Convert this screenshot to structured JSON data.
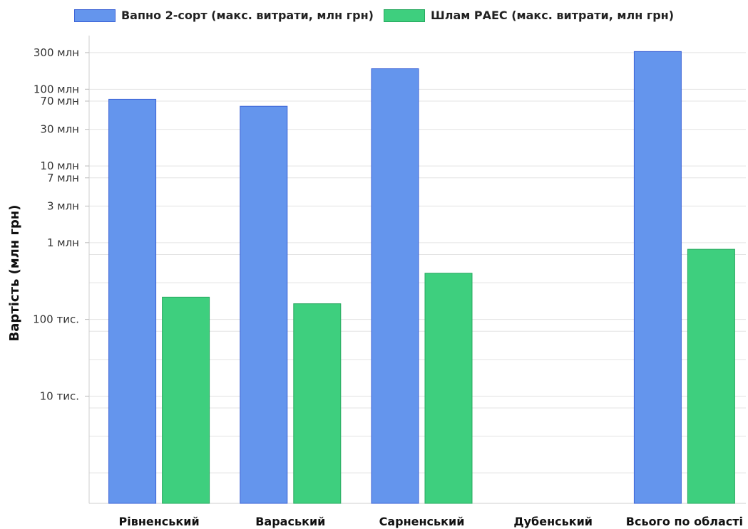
{
  "chart_data": {
    "type": "bar",
    "ylabel": "Вартість (млн грн)",
    "yscale": "log",
    "ylim": [
      400,
      500000000
    ],
    "legend_position": "top-center",
    "grid": true,
    "categories": [
      "Рівненський",
      "Вараський",
      "Сарненський",
      "Дубенський",
      "Всього по області"
    ],
    "series": [
      {
        "name": "Вапно 2-сорт (макс. витрати, млн грн)",
        "color": "#6495ED",
        "border": "#3b62d6",
        "values": [
          74000000,
          60000000,
          185000000,
          null,
          310000000
        ]
      },
      {
        "name": "Шлам РАЕС (макс. витрати, млн грн)",
        "color": "#3ECF7E",
        "border": "#27a85f",
        "values": [
          195000,
          160000,
          400000,
          null,
          820000
        ]
      }
    ],
    "ytick_labels": [
      {
        "value": 300000000,
        "label": "300 млн"
      },
      {
        "value": 100000000,
        "label": "100 млн"
      },
      {
        "value": 70000000,
        "label": "70 млн"
      },
      {
        "value": 30000000,
        "label": "30 млн"
      },
      {
        "value": 10000000,
        "label": "10 млн"
      },
      {
        "value": 7000000,
        "label": "7 млн"
      },
      {
        "value": 3000000,
        "label": "3 млн"
      },
      {
        "value": 1000000,
        "label": "1 млн"
      },
      {
        "value": 100000,
        "label": "100 тис."
      },
      {
        "value": 10000,
        "label": "10 тис."
      }
    ],
    "gridlines": [
      300000000,
      100000000,
      70000000,
      30000000,
      10000000,
      7000000,
      3000000,
      1000000,
      700000,
      300000,
      100000,
      70000,
      30000,
      10000,
      7000,
      3000,
      1000
    ]
  }
}
